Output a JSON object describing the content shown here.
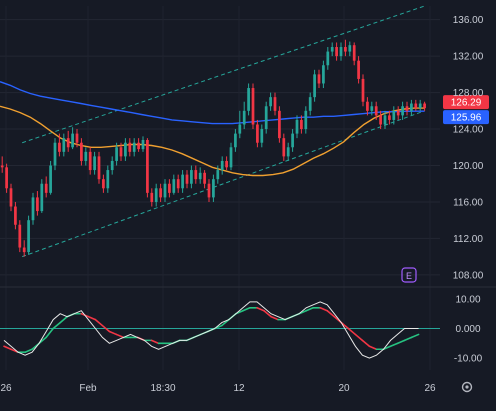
{
  "chart_data": [
    {
      "type": "candlestick",
      "x_labels": [
        "26",
        "Feb",
        "18:30",
        "12",
        "20",
        "26"
      ],
      "y_ticks": [
        108,
        112,
        116,
        120,
        124,
        128,
        132,
        136
      ],
      "ylim": [
        107,
        137.5
      ],
      "price_badges": [
        {
          "value": "126.29",
          "color": "#f23645"
        },
        {
          "value": "125.96",
          "color": "#2962ff"
        }
      ],
      "event_marker": "E",
      "candles": [
        [
          120.0,
          119.8,
          121.0,
          119.2
        ],
        [
          119.8,
          117.5,
          120.2,
          117.0
        ],
        [
          117.5,
          115.5,
          118.0,
          115.0
        ],
        [
          115.5,
          113.5,
          116.0,
          113.0
        ],
        [
          113.5,
          111.0,
          114.0,
          110.5
        ],
        [
          111.0,
          110.5,
          111.8,
          110.0
        ],
        [
          110.5,
          114.0,
          114.5,
          110.2
        ],
        [
          114.0,
          116.5,
          117.0,
          113.5
        ],
        [
          116.5,
          115.0,
          117.2,
          114.5
        ],
        [
          115.0,
          118.0,
          118.5,
          114.8
        ],
        [
          118.0,
          117.0,
          118.8,
          116.5
        ],
        [
          117.0,
          120.0,
          120.5,
          116.8
        ],
        [
          120.0,
          122.5,
          123.0,
          119.5
        ],
        [
          122.5,
          121.5,
          123.5,
          121.0
        ],
        [
          121.5,
          123.0,
          123.5,
          121.0
        ],
        [
          123.0,
          122.0,
          123.8,
          121.5
        ],
        [
          122.0,
          123.5,
          124.2,
          121.8
        ],
        [
          123.5,
          122.5,
          124.0,
          122.0
        ],
        [
          122.5,
          120.5,
          123.0,
          120.0
        ],
        [
          120.5,
          121.5,
          122.0,
          120.0
        ],
        [
          121.5,
          119.5,
          122.0,
          119.0
        ],
        [
          119.5,
          121.0,
          121.5,
          119.0
        ],
        [
          121.0,
          118.5,
          121.5,
          118.0
        ],
        [
          118.5,
          117.5,
          119.0,
          117.0
        ],
        [
          117.5,
          119.5,
          120.0,
          117.0
        ],
        [
          119.5,
          120.5,
          121.0,
          119.0
        ],
        [
          120.5,
          122.0,
          122.5,
          120.0
        ],
        [
          122.0,
          121.0,
          122.5,
          120.5
        ],
        [
          121.0,
          122.5,
          123.0,
          120.5
        ],
        [
          122.5,
          121.5,
          123.0,
          121.0
        ],
        [
          121.5,
          122.5,
          123.0,
          121.0
        ],
        [
          122.5,
          121.8,
          123.0,
          121.5
        ],
        [
          121.8,
          122.8,
          123.2,
          121.5
        ],
        [
          122.8,
          117.0,
          123.0,
          116.5
        ],
        [
          117.0,
          116.0,
          117.5,
          115.5
        ],
        [
          116.0,
          117.5,
          118.0,
          115.5
        ],
        [
          117.5,
          116.5,
          118.0,
          116.0
        ],
        [
          116.5,
          118.0,
          118.5,
          116.0
        ],
        [
          118.0,
          117.0,
          118.5,
          116.5
        ],
        [
          117.0,
          118.5,
          119.0,
          116.8
        ],
        [
          118.5,
          117.5,
          119.0,
          117.0
        ],
        [
          117.5,
          119.0,
          119.5,
          117.0
        ],
        [
          119.0,
          118.0,
          119.5,
          117.5
        ],
        [
          118.0,
          119.5,
          120.0,
          117.5
        ],
        [
          119.5,
          118.5,
          120.0,
          118.0
        ],
        [
          118.5,
          119.2,
          119.8,
          118.0
        ],
        [
          119.2,
          118.0,
          119.5,
          117.5
        ],
        [
          118.0,
          116.5,
          118.5,
          116.0
        ],
        [
          116.5,
          118.5,
          119.0,
          116.0
        ],
        [
          118.5,
          119.5,
          120.0,
          118.0
        ],
        [
          119.5,
          120.5,
          121.0,
          119.0
        ],
        [
          120.5,
          119.8,
          121.0,
          119.5
        ],
        [
          119.8,
          122.0,
          122.5,
          119.5
        ],
        [
          122.0,
          123.5,
          124.0,
          121.5
        ],
        [
          123.5,
          124.5,
          126.0,
          123.0
        ],
        [
          124.5,
          126.0,
          127.0,
          124.0
        ],
        [
          126.0,
          128.5,
          129.0,
          125.5
        ],
        [
          128.5,
          124.5,
          129.0,
          124.0
        ],
        [
          124.5,
          122.5,
          125.0,
          122.0
        ],
        [
          122.5,
          124.0,
          124.5,
          122.0
        ],
        [
          124.0,
          126.5,
          127.0,
          123.5
        ],
        [
          126.5,
          127.5,
          128.0,
          126.0
        ],
        [
          127.5,
          126.0,
          128.0,
          125.5
        ],
        [
          126.0,
          123.0,
          126.5,
          122.5
        ],
        [
          123.0,
          121.0,
          123.5,
          120.5
        ],
        [
          121.0,
          122.0,
          122.5,
          120.5
        ],
        [
          122.0,
          123.5,
          124.0,
          121.5
        ],
        [
          123.5,
          125.0,
          125.5,
          123.0
        ],
        [
          125.0,
          124.0,
          125.5,
          123.5
        ],
        [
          124.0,
          126.0,
          126.5,
          123.5
        ],
        [
          126.0,
          127.5,
          128.0,
          125.5
        ],
        [
          127.5,
          130.0,
          130.5,
          127.0
        ],
        [
          130.0,
          129.0,
          130.5,
          128.5
        ],
        [
          129.0,
          131.0,
          131.5,
          128.5
        ],
        [
          131.0,
          132.5,
          133.0,
          130.5
        ],
        [
          132.5,
          133.0,
          133.5,
          132.0
        ],
        [
          133.0,
          132.0,
          133.5,
          131.5
        ],
        [
          132.0,
          133.0,
          133.5,
          131.5
        ],
        [
          133.0,
          132.5,
          133.8,
          132.0
        ],
        [
          132.5,
          133.2,
          133.6,
          132.0
        ],
        [
          133.2,
          131.5,
          133.5,
          131.0
        ],
        [
          131.5,
          129.5,
          132.0,
          129.0
        ],
        [
          129.5,
          127.0,
          130.0,
          126.5
        ],
        [
          127.0,
          126.0,
          127.5,
          125.5
        ],
        [
          126.0,
          126.5,
          127.0,
          125.5
        ],
        [
          126.5,
          125.5,
          127.0,
          125.0
        ],
        [
          125.5,
          124.5,
          126.0,
          124.0
        ],
        [
          124.5,
          125.5,
          126.0,
          124.0
        ],
        [
          125.5,
          125.0,
          126.0,
          124.5
        ],
        [
          125.0,
          126.0,
          126.5,
          124.5
        ],
        [
          126.0,
          125.5,
          126.5,
          125.0
        ],
        [
          125.5,
          126.5,
          127.0,
          125.0
        ],
        [
          126.5,
          126.0,
          127.0,
          125.5
        ],
        [
          126.0,
          126.8,
          127.2,
          125.5
        ],
        [
          126.8,
          126.3,
          127.2,
          126.0
        ],
        [
          126.3,
          126.8,
          127.2,
          126.0
        ],
        [
          126.8,
          126.29,
          127.0,
          126.0
        ]
      ],
      "series": [
        {
          "kind": "ma_orange",
          "color": "#f0a030",
          "values": [
            126.5,
            126.2,
            125.8,
            125.3,
            124.6,
            123.8,
            123.0,
            122.5,
            122.2,
            122.0,
            122.0,
            122.1,
            122.2,
            122.3,
            122.3,
            122.2,
            122.0,
            121.7,
            121.3,
            120.8,
            120.3,
            119.8,
            119.5,
            119.2,
            119.0,
            118.9,
            118.9,
            119.0,
            119.2,
            119.6,
            120.2,
            120.8,
            121.3,
            121.9,
            122.6,
            123.6,
            124.5,
            125.2,
            125.7,
            126.0,
            126.2,
            126.3,
            126.3
          ]
        },
        {
          "kind": "ma_blue",
          "color": "#2962ff",
          "values": [
            129.2,
            128.8,
            128.3,
            127.9,
            127.6,
            127.4,
            127.2,
            127.0,
            126.8,
            126.6,
            126.4,
            126.2,
            126.0,
            125.8,
            125.6,
            125.4,
            125.2,
            125.0,
            124.9,
            124.8,
            124.7,
            124.6,
            124.6,
            124.6,
            124.7,
            124.8,
            124.9,
            125.0,
            125.1,
            125.2,
            125.3,
            125.3,
            125.4,
            125.4,
            125.5,
            125.6,
            125.7,
            125.8,
            125.9,
            125.9,
            125.95,
            125.96,
            125.96
          ]
        }
      ],
      "channel": {
        "color": "#26a69a",
        "upper": [
          [
            0,
            122.5
          ],
          [
            96,
            137.5
          ]
        ],
        "lower": [
          [
            0,
            110.0
          ],
          [
            96,
            126.0
          ]
        ]
      }
    },
    {
      "type": "oscillator",
      "y_ticks": [
        "10.00",
        "0.000",
        "-10.00"
      ],
      "ylim": [
        -14,
        13
      ],
      "zero_line": 0,
      "series": [
        {
          "kind": "fast_white",
          "color": "#e8e8e8",
          "values": [
            -4,
            -6,
            -8,
            -9,
            -8,
            -5,
            -1,
            3,
            5,
            4,
            5,
            6,
            3,
            0,
            -3,
            -5,
            -4,
            -3,
            -2,
            -3,
            -4,
            -6,
            -7,
            -6,
            -5,
            -4,
            -4,
            -3,
            -2,
            -1,
            0,
            2,
            3,
            5,
            7,
            9,
            9,
            7,
            5,
            4,
            3,
            4,
            5,
            7,
            8,
            9,
            8,
            5,
            2,
            -2,
            -6,
            -9,
            -10,
            -9,
            -7,
            -4,
            -2,
            0,
            0,
            0
          ]
        },
        {
          "kind": "signal_cycle",
          "color_up": "#26c281",
          "color_down": "#f23645",
          "values": [
            -6,
            -7,
            -8,
            -8,
            -7,
            -5,
            -3,
            0,
            2,
            4,
            5,
            5,
            4,
            3,
            1,
            -1,
            -2,
            -3,
            -3,
            -3,
            -4,
            -4,
            -5,
            -5,
            -5,
            -4,
            -4,
            -3,
            -2,
            -1,
            0,
            1,
            3,
            5,
            6,
            7,
            7,
            6,
            4,
            3,
            3,
            4,
            5,
            6,
            7,
            7,
            6,
            4,
            2,
            0,
            -2,
            -4,
            -6,
            -7,
            -7,
            -6,
            -5,
            -4,
            -3,
            -2
          ]
        }
      ]
    }
  ],
  "icons": {
    "settings": "gear-icon"
  }
}
